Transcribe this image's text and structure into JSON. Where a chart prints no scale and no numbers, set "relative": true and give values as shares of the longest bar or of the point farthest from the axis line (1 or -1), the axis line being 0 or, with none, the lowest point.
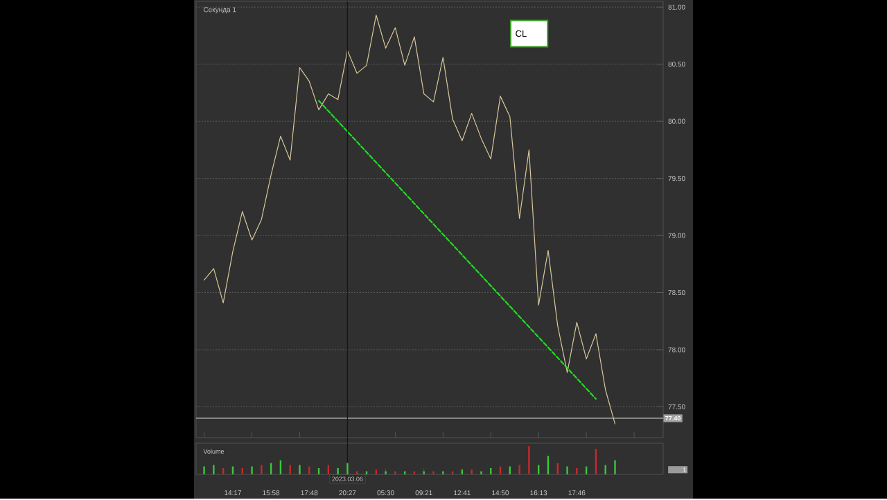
{
  "chart_data": [
    {
      "type": "line",
      "ylim": [
        77.23,
        81.05
      ],
      "yticks": [
        {
          "value": 77.5,
          "label": "77.50"
        },
        {
          "value": 78,
          "label": "78.00"
        },
        {
          "value": 78.5,
          "label": "78.50"
        },
        {
          "value": 79,
          "label": "79.00"
        },
        {
          "value": 79.5,
          "label": "79.50"
        },
        {
          "value": 80,
          "label": "80.00"
        },
        {
          "value": 80.5,
          "label": "80.50"
        },
        {
          "value": 81,
          "label": "81.00"
        }
      ],
      "tick_labels": "y",
      "grid": "y",
      "categories": [
        null,
        null,
        null,
        null,
        null,
        null,
        null,
        null,
        null,
        null,
        null,
        null,
        null,
        null,
        null,
        null,
        null,
        null,
        null,
        null,
        null,
        null,
        null,
        null,
        null,
        null,
        null,
        null,
        null,
        null,
        null,
        null,
        null,
        null,
        null,
        null,
        null,
        null,
        null,
        null,
        null,
        null,
        null,
        null
      ],
      "series": [
        {
          "color": "#d8c89a",
          "values": [
            78.61,
            78.71,
            78.41,
            78.86,
            79.21,
            78.96,
            79.14,
            79.53,
            79.87,
            79.66,
            80.47,
            80.35,
            80.1,
            80.24,
            80.19,
            80.62,
            80.42,
            80.49,
            80.93,
            80.64,
            80.82,
            80.49,
            80.74,
            80.24,
            80.17,
            80.56,
            80.02,
            79.83,
            80.07,
            79.85,
            79.67,
            80.22,
            80.04,
            79.15,
            79.75,
            78.39,
            78.87,
            78.21,
            77.8,
            78.24,
            77.92,
            78.14,
            77.65,
            77.35
          ]
        },
        {
          "type": "line",
          "color": "#22dd22",
          "line_style": "dashed",
          "values": [
            null,
            null,
            null,
            null,
            null,
            null,
            null,
            null,
            null,
            null,
            null,
            null,
            80.18,
            80.09,
            80.0,
            79.91,
            79.82,
            79.73,
            79.64,
            79.55,
            79.46,
            79.37,
            79.28,
            79.19,
            79.1,
            79.01,
            78.92,
            78.83,
            78.74,
            78.65,
            78.56,
            78.47,
            78.38,
            78.29,
            78.2,
            78.11,
            78.02,
            77.93,
            77.84,
            77.75,
            77.66,
            77.57,
            null,
            null
          ]
        }
      ],
      "ref_lines": [
        {
          "axis": "y",
          "value": 77.4,
          "label": "77.40",
          "color": "#c8c8c8"
        }
      ],
      "annotations": [
        "Секунда 1",
        "CL"
      ]
    },
    {
      "type": "bar",
      "relative": true,
      "tick_labels": "x",
      "categories": [
        null,
        null,
        null,
        "14:17",
        null,
        null,
        null,
        "15:58",
        null,
        null,
        null,
        "17:48",
        null,
        null,
        null,
        "20:27",
        null,
        null,
        null,
        "05:30",
        null,
        null,
        null,
        "09:21",
        null,
        null,
        null,
        "12:41",
        null,
        null,
        null,
        "14:50",
        null,
        null,
        null,
        "16:13",
        null,
        null,
        null,
        "17:46",
        null,
        null,
        null,
        null
      ],
      "values": [
        0.28,
        0.33,
        0.22,
        0.28,
        0.22,
        0.28,
        0.33,
        0.4,
        0.5,
        0.33,
        0.33,
        0.28,
        0.22,
        0.33,
        0.22,
        0.4,
        0.11,
        0.11,
        0.17,
        0.11,
        0.11,
        0.11,
        0.11,
        0.11,
        0.11,
        0.11,
        0.11,
        0.17,
        0.17,
        0.11,
        0.22,
        0.28,
        0.28,
        0.33,
        1,
        0.33,
        0.65,
        0.4,
        0.28,
        0.22,
        0.28,
        0.9,
        0.33,
        0.5
      ],
      "colors": [
        "#3cc83c",
        "#3cc83c",
        "#c82828",
        "#3cc83c",
        "#c82828",
        "#3cc83c",
        "#c82828",
        "#3cc83c",
        "#3cc83c",
        "#c82828",
        "#3cc83c",
        "#c82828",
        "#3cc83c",
        "#c82828",
        "#3cc83c",
        "#3cc83c",
        "#c82828",
        "#3cc83c",
        "#c82828",
        "#3cc83c",
        "#c82828",
        "#3cc83c",
        "#c82828",
        "#3cc83c",
        "#c82828",
        "#3cc83c",
        "#c82828",
        "#3cc83c",
        "#c82828",
        "#3cc83c",
        "#3cc83c",
        "#c82828",
        "#3cc83c",
        "#c82828",
        "#c82828",
        "#3cc83c",
        "#3cc83c",
        "#c82828",
        "#3cc83c",
        "#c82828",
        "#3cc83c",
        "#c82828",
        "#3cc83c",
        "#3cc83c"
      ],
      "ref_lines": [
        {
          "axis": "x",
          "value": "20:27",
          "label": "2023.03.06",
          "color": "#151515"
        }
      ],
      "annotations": [
        "Volume",
        "1"
      ]
    }
  ]
}
